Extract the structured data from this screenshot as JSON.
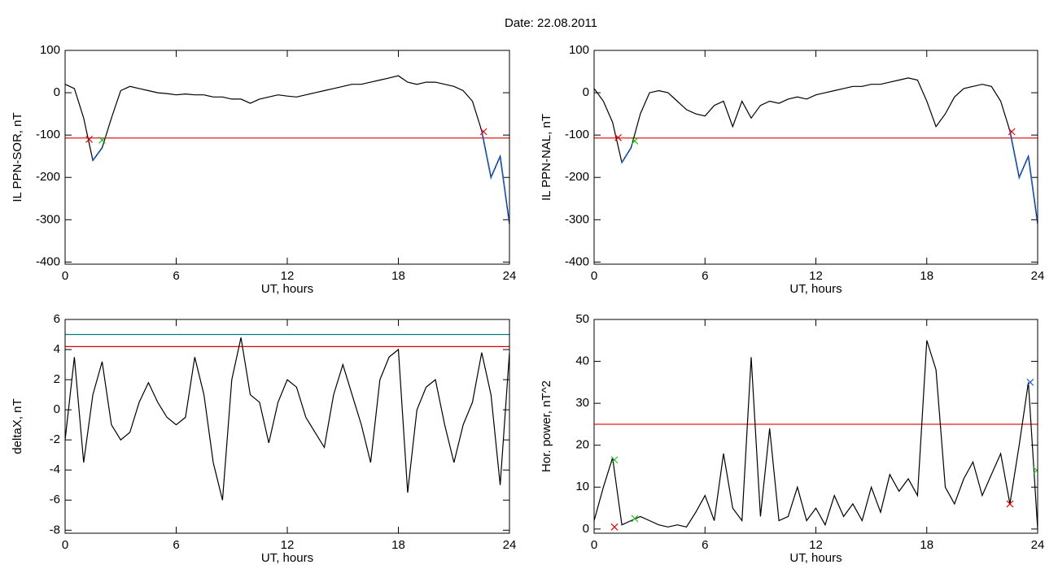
{
  "title": "Date:  22.08.2011",
  "chart_data": [
    {
      "type": "line",
      "ylabel": "IL PPN-SOR, nT",
      "xlabel": "UT, hours",
      "xlim": [
        0,
        24
      ],
      "xticks": [
        0,
        6,
        12,
        18,
        24
      ],
      "ylim": [
        -405,
        100
      ],
      "yticks": [
        100,
        0,
        -100,
        -200,
        -300,
        -400
      ],
      "x": [
        0,
        0.5,
        1,
        1.5,
        2,
        2.5,
        3,
        3.5,
        4,
        4.5,
        5,
        5.5,
        6,
        6.5,
        7,
        7.5,
        8,
        8.5,
        9,
        9.5,
        10,
        10.5,
        11,
        11.5,
        12,
        12.5,
        13,
        13.5,
        14,
        14.5,
        15,
        15.5,
        16,
        16.5,
        17,
        17.5,
        18,
        18.5,
        19,
        19.5,
        20,
        20.5,
        21,
        21.5,
        22,
        22.5,
        23,
        23.5,
        24
      ],
      "series": [
        {
          "color": "#000000",
          "values": [
            20,
            10,
            -60,
            -160,
            -130,
            -60,
            5,
            15,
            10,
            5,
            0,
            -2,
            -5,
            -3,
            -5,
            -5,
            -10,
            -10,
            -15,
            -15,
            -25,
            -15,
            -10,
            -5,
            -8,
            -10,
            -5,
            0,
            5,
            10,
            15,
            20,
            20,
            25,
            30,
            35,
            40,
            25,
            20,
            25,
            25,
            20,
            15,
            5,
            -20,
            -90,
            -200,
            -150,
            -310
          ]
        },
        {
          "color": "#1f5fd0",
          "values": [
            null,
            null,
            null,
            -160,
            -130,
            null,
            null,
            null,
            null,
            null,
            null,
            null,
            null,
            null,
            null,
            null,
            null,
            null,
            null,
            null,
            null,
            null,
            null,
            null,
            null,
            null,
            null,
            null,
            null,
            null,
            null,
            null,
            null,
            null,
            null,
            null,
            null,
            null,
            null,
            null,
            null,
            null,
            null,
            null,
            null,
            -90,
            -200,
            -150,
            -310
          ]
        }
      ],
      "hlines": [
        {
          "color": "#e00000",
          "value": -107
        }
      ],
      "markers": [
        {
          "color": "#e00000",
          "x": [
            1.3,
            22.6
          ],
          "y": [
            -110,
            -92
          ]
        },
        {
          "color": "#20c020",
          "x": [
            2.0
          ],
          "y": [
            -112
          ]
        }
      ]
    },
    {
      "type": "line",
      "ylabel": "IL PPN-NAL, nT",
      "xlabel": "UT, hours",
      "xlim": [
        0,
        24
      ],
      "xticks": [
        0,
        6,
        12,
        18,
        24
      ],
      "ylim": [
        -405,
        100
      ],
      "yticks": [
        100,
        0,
        -100,
        -200,
        -300,
        -400
      ],
      "x": [
        0,
        0.5,
        1,
        1.5,
        2,
        2.5,
        3,
        3.5,
        4,
        4.5,
        5,
        5.5,
        6,
        6.5,
        7,
        7.5,
        8,
        8.5,
        9,
        9.5,
        10,
        10.5,
        11,
        11.5,
        12,
        12.5,
        13,
        13.5,
        14,
        14.5,
        15,
        15.5,
        16,
        16.5,
        17,
        17.5,
        18,
        18.5,
        19,
        19.5,
        20,
        20.5,
        21,
        21.5,
        22,
        22.5,
        23,
        23.5,
        24
      ],
      "series": [
        {
          "color": "#000000",
          "values": [
            10,
            -20,
            -70,
            -165,
            -130,
            -50,
            0,
            5,
            0,
            -20,
            -40,
            -50,
            -55,
            -30,
            -20,
            -80,
            -20,
            -60,
            -30,
            -20,
            -25,
            -15,
            -10,
            -15,
            -5,
            0,
            5,
            10,
            15,
            15,
            20,
            20,
            25,
            30,
            35,
            30,
            -20,
            -80,
            -50,
            -10,
            10,
            15,
            20,
            15,
            -20,
            -90,
            -200,
            -150,
            -310
          ]
        },
        {
          "color": "#1f5fd0",
          "values": [
            null,
            null,
            null,
            -165,
            -130,
            null,
            null,
            null,
            null,
            null,
            null,
            null,
            null,
            null,
            null,
            null,
            null,
            null,
            null,
            null,
            null,
            null,
            null,
            null,
            null,
            null,
            null,
            null,
            null,
            null,
            null,
            null,
            null,
            null,
            null,
            null,
            null,
            null,
            null,
            null,
            null,
            null,
            null,
            null,
            null,
            -90,
            -200,
            -150,
            -310
          ]
        }
      ],
      "hlines": [
        {
          "color": "#e00000",
          "value": -107
        }
      ],
      "markers": [
        {
          "color": "#e00000",
          "x": [
            1.3,
            22.6
          ],
          "y": [
            -106,
            -92
          ]
        },
        {
          "color": "#20c020",
          "x": [
            2.2
          ],
          "y": [
            -114
          ]
        }
      ]
    },
    {
      "type": "line",
      "ylabel": "deltaX, nT",
      "xlabel": "UT, hours",
      "xlim": [
        0,
        24
      ],
      "xticks": [
        0,
        6,
        12,
        18,
        24
      ],
      "ylim": [
        -8.2,
        6
      ],
      "yticks": [
        6,
        4,
        2,
        0,
        -2,
        -4,
        -6,
        -8
      ],
      "x": [
        0,
        0.5,
        1,
        1.5,
        2,
        2.5,
        3,
        3.5,
        4,
        4.5,
        5,
        5.5,
        6,
        6.5,
        7,
        7.5,
        8,
        8.5,
        9,
        9.5,
        10,
        10.5,
        11,
        11.5,
        12,
        12.5,
        13,
        13.5,
        14,
        14.5,
        15,
        15.5,
        16,
        16.5,
        17,
        17.5,
        18,
        18.5,
        19,
        19.5,
        20,
        20.5,
        21,
        21.5,
        22,
        22.5,
        23,
        23.5,
        24
      ],
      "series": [
        {
          "color": "#000000",
          "values": [
            -2,
            3.5,
            -3.5,
            1,
            3.2,
            -1,
            -2,
            -1.5,
            0.5,
            1.8,
            0.5,
            -0.5,
            -1,
            -0.5,
            3.5,
            1,
            -3.5,
            -6,
            2,
            4.8,
            1,
            0.5,
            -2.2,
            0.5,
            2,
            1.5,
            -0.5,
            -1.5,
            -2.5,
            1,
            3,
            1,
            -1,
            -3.5,
            2,
            3.5,
            4,
            -5.5,
            0,
            1.5,
            2,
            -1,
            -3.5,
            -1,
            0.5,
            3.8,
            1,
            -5,
            3.8
          ]
        }
      ],
      "hlines": [
        {
          "color": "#008080",
          "value": 5.0
        },
        {
          "color": "#e00000",
          "value": 4.2
        }
      ],
      "markers": []
    },
    {
      "type": "line",
      "ylabel": "Hor. power, nT^2",
      "xlabel": "UT, hours",
      "xlim": [
        0,
        24
      ],
      "xticks": [
        0,
        6,
        12,
        18,
        24
      ],
      "ylim": [
        -1,
        50
      ],
      "yticks": [
        0,
        10,
        20,
        30,
        40,
        50
      ],
      "x": [
        0,
        0.5,
        1,
        1.5,
        2,
        2.5,
        3,
        3.5,
        4,
        4.5,
        5,
        5.5,
        6,
        6.5,
        7,
        7.5,
        8,
        8.5,
        9,
        9.5,
        10,
        10.5,
        11,
        11.5,
        12,
        12.5,
        13,
        13.5,
        14,
        14.5,
        15,
        15.5,
        16,
        16.5,
        17,
        17.5,
        18,
        18.5,
        19,
        19.5,
        20,
        20.5,
        21,
        21.5,
        22,
        22.5,
        23,
        23.5,
        24
      ],
      "series": [
        {
          "color": "#000000",
          "values": [
            2,
            10,
            17,
            1,
            2,
            3,
            2,
            1,
            0.5,
            1,
            0.5,
            4,
            8,
            2,
            18,
            5,
            2,
            41,
            3,
            24,
            2,
            3,
            10,
            2,
            5,
            1,
            8,
            3,
            6,
            2,
            10,
            4,
            13,
            9,
            12,
            8,
            45,
            38,
            10,
            6,
            12,
            16,
            8,
            13,
            18,
            6,
            20,
            35,
            0
          ]
        }
      ],
      "hlines": [
        {
          "color": "#e00000",
          "value": 25
        }
      ],
      "markers": [
        {
          "color": "#20c020",
          "x": [
            1.1,
            2.2,
            23.95
          ],
          "y": [
            16.5,
            2.5,
            14
          ]
        },
        {
          "color": "#e00000",
          "x": [
            1.1,
            22.5
          ],
          "y": [
            0.5,
            6
          ]
        },
        {
          "color": "#1f5fd0",
          "x": [
            23.6
          ],
          "y": [
            35
          ]
        }
      ]
    }
  ]
}
